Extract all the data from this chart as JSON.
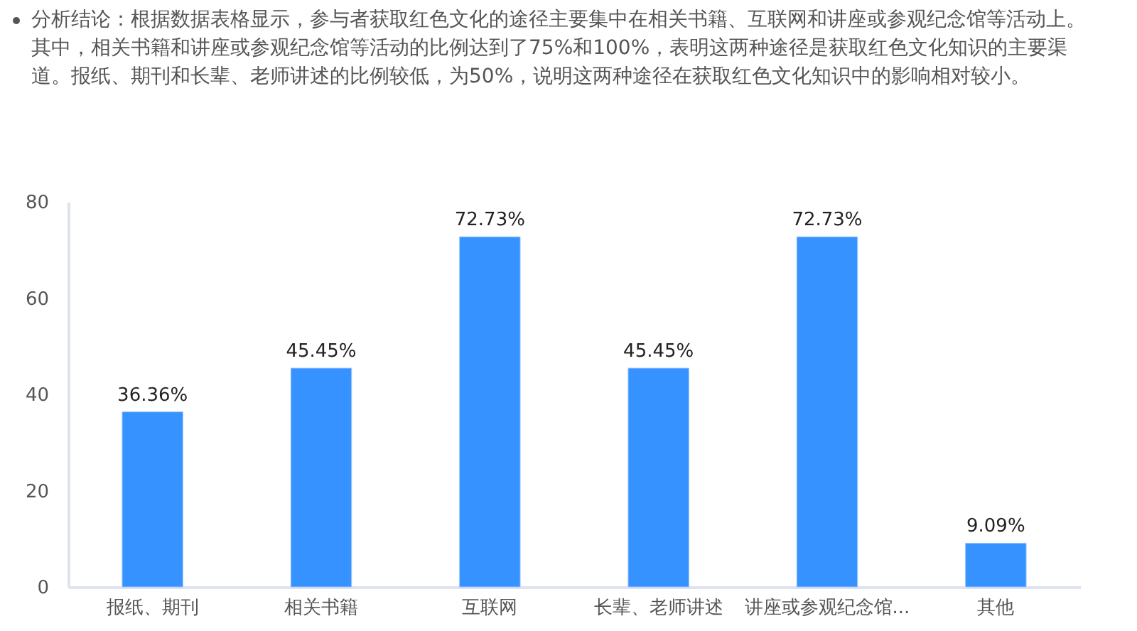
{
  "chart_data": {
    "type": "bar",
    "annotations": [
      "分析结论：根据数据表格显示，参与者获取红色文化的途径主要集中在相关书籍、互联网和讲座或参观纪念馆等活动上。其中，相关书籍和讲座或参观纪念馆等活动的比例达到了75%和100%，表明这两种途径是获取红色文化知识的主要渠道。报纸、期刊和长辈、老师讲述的比例较低，为50%，说明这两种途径在获取红色文化知识中的影响相对较小。"
    ],
    "categories": [
      "报纸、期刊",
      "相关书籍",
      "互联网",
      "长辈、老师讲述",
      "讲座或参观纪念馆...",
      "其他"
    ],
    "values": [
      36.36,
      45.45,
      72.73,
      45.45,
      72.73,
      9.09
    ],
    "value_labels": [
      "36.36%",
      "45.45%",
      "72.73%",
      "45.45%",
      "72.73%",
      "9.09%"
    ],
    "color": "#3592fe",
    "ylim": [
      0,
      80
    ],
    "yticks": [
      0,
      20,
      40,
      60,
      80
    ],
    "grid": false
  }
}
